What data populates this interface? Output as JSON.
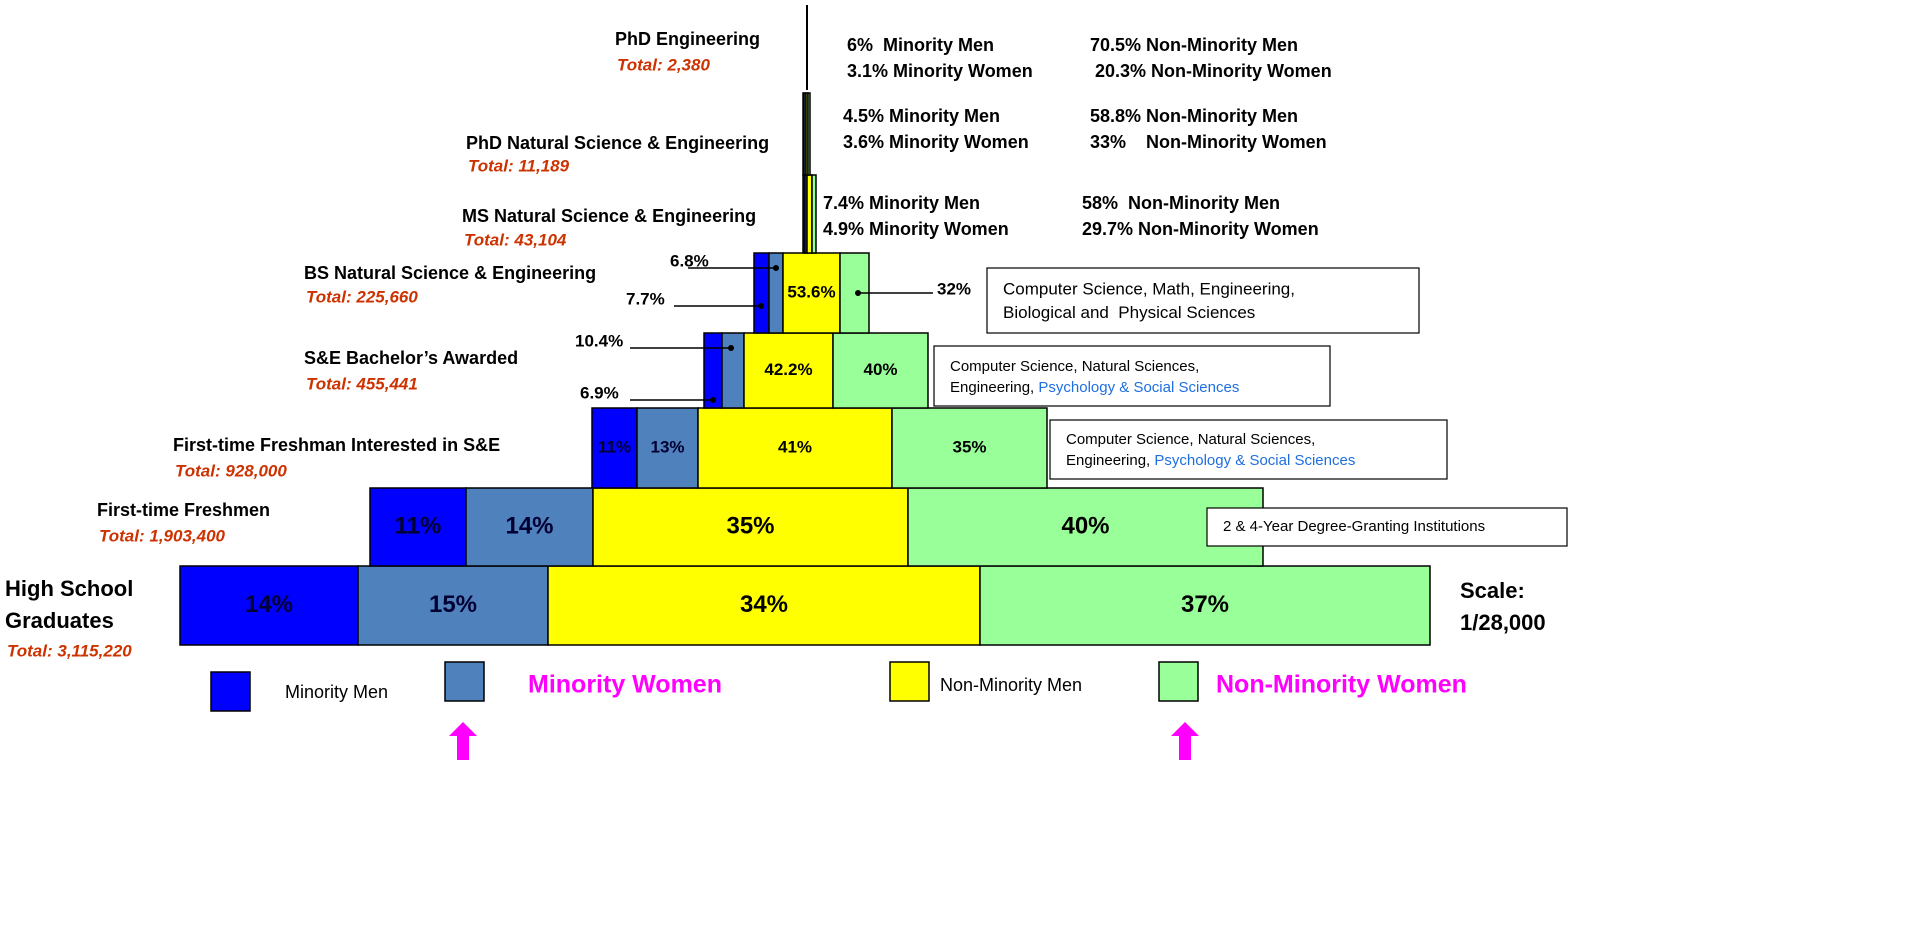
{
  "levels": [
    {
      "label_lines": [
        "High School",
        "Graduates"
      ],
      "total": "Total: 3,115,220",
      "segments": [
        "14%",
        "15%",
        "34%",
        "37%"
      ]
    },
    {
      "label": "First-time Freshmen",
      "total": "Total: 1,903,400",
      "segments": [
        "11%",
        "14%",
        "35%",
        "40%"
      ],
      "description": [
        "2 & 4-Year Degree-Granting Institutions"
      ]
    },
    {
      "label": "First-time Freshman Interested in S&E",
      "total": "Total: 928,000",
      "segments": [
        "11%",
        "13%",
        "41%",
        "35%"
      ],
      "description": [
        "Computer Science, Natural Sciences,",
        "Engineering, ",
        "Psychology & Social Sciences"
      ]
    },
    {
      "label": "S&E Bachelor’s Awarded",
      "total": "Total: 455,441",
      "segments": [
        "6.9%",
        "10.4%",
        "42.2%",
        "40%"
      ],
      "description": [
        "Computer Science, Natural Sciences,",
        "Engineering, ",
        "Psychology & Social Sciences"
      ]
    },
    {
      "label": "BS Natural Science & Engineering",
      "total": "Total: 225,660",
      "segments": [
        "7.7%",
        "6.8%",
        "53.6%",
        "32%"
      ],
      "description": [
        "Computer Science, Math, Engineering,",
        "Biological and  Physical Sciences"
      ]
    },
    {
      "label": "MS Natural Science & Engineering",
      "total": "Total: 43,104",
      "stats": [
        "7.4% Minority Men",
        "4.9% Minority Women",
        "58%  Non-Minority Men",
        "29.7% Non-Minority Women"
      ]
    },
    {
      "label": "PhD Natural Science & Engineering",
      "total": "Total: 11,189",
      "stats": [
        "4.5% Minority Men",
        "3.6% Minority Women",
        "58.8% Non-Minority Men",
        "33%    Non-Minority Women"
      ]
    },
    {
      "label": "PhD Engineering",
      "total": "Total: 2,380",
      "stats": [
        "6%  Minority Men",
        "3.1% Minority Women",
        "70.5% Non-Minority Men",
        " 20.3% Non-Minority Women"
      ]
    }
  ],
  "legend": [
    "Minority Men",
    "Minority Women",
    "Non-Minority Men",
    "Non-Minority Women"
  ],
  "scale": [
    "Scale:",
    "1/28,000"
  ]
}
